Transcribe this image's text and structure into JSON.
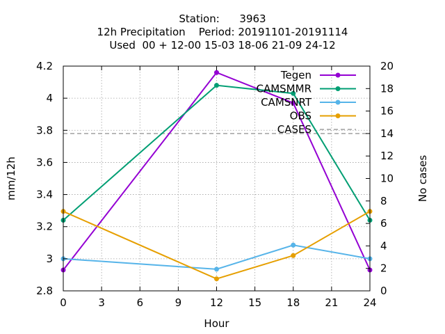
{
  "chart_data": {
    "type": "line",
    "title_lines": [
      "Station:      3963",
      "12h Precipitation    Period: 20191101-20191114",
      "Used  00 + 12-00 15-03 18-06 21-09 24-12"
    ],
    "xlabel": "Hour",
    "ylabel": "mm/12h",
    "y2label": "No cases",
    "xlim": [
      0,
      24
    ],
    "ylim": [
      2.8,
      4.2
    ],
    "y2lim": [
      0,
      20
    ],
    "x_ticks": [
      0,
      3,
      6,
      9,
      12,
      15,
      18,
      21,
      24
    ],
    "y_ticks": [
      "2.8",
      "3",
      "3.2",
      "3.4",
      "3.6",
      "3.8",
      "4",
      "4.2"
    ],
    "y2_ticks": [
      0,
      2,
      4,
      6,
      8,
      10,
      12,
      14,
      16,
      18,
      20
    ],
    "grid": true,
    "legend_position": "top-right",
    "x": [
      0,
      12,
      18,
      24
    ],
    "series": [
      {
        "name": "Tegen",
        "color": "#9400d3",
        "values": [
          2.93,
          4.16,
          3.97,
          2.93
        ]
      },
      {
        "name": "CAMSMMR",
        "color": "#009e73",
        "values": [
          3.24,
          4.08,
          4.03,
          3.24
        ]
      },
      {
        "name": "CAMSNRT",
        "color": "#56b4e9",
        "values": [
          3.0,
          2.935,
          3.085,
          3.0
        ]
      },
      {
        "name": "OBS",
        "color": "#e69f00",
        "values": [
          3.295,
          2.875,
          3.02,
          3.295
        ]
      }
    ],
    "cases": {
      "name": "CASES",
      "color": "#a0a0a0",
      "value": 14,
      "axis": "y2"
    }
  }
}
